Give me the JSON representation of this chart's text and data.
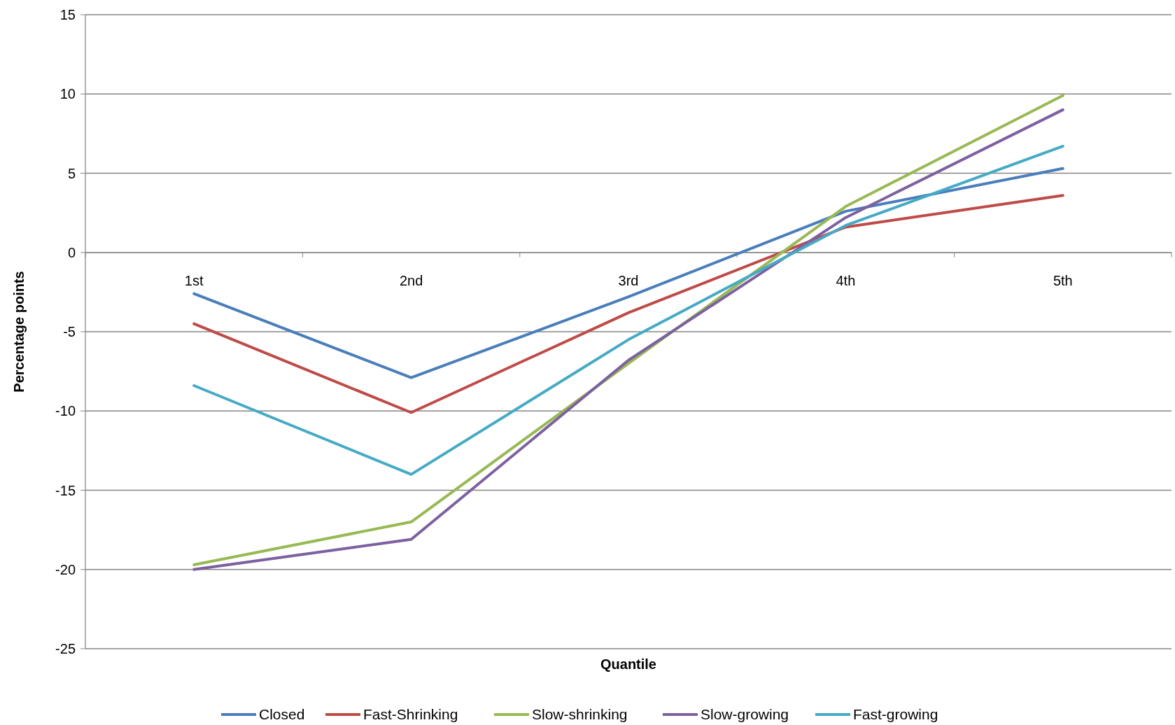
{
  "chart_data": {
    "type": "line",
    "xlabel": "Quantile",
    "ylabel": "Percentage points",
    "categories": [
      "1st",
      "2nd",
      "3rd",
      "4th",
      "5th"
    ],
    "series": [
      {
        "name": "Closed",
        "color": "#4a7ebb",
        "values": [
          -2.6,
          -7.9,
          -2.8,
          2.6,
          5.3
        ]
      },
      {
        "name": "Fast-Shrinking",
        "color": "#be4b48",
        "values": [
          -4.5,
          -10.1,
          -3.8,
          1.6,
          3.6
        ]
      },
      {
        "name": "Slow-shrinking",
        "color": "#98b954",
        "values": [
          -19.7,
          -17.0,
          -7.0,
          2.9,
          9.9
        ]
      },
      {
        "name": "Slow-growing",
        "color": "#7d60a0",
        "values": [
          -20.0,
          -18.1,
          -6.8,
          2.2,
          9.0
        ]
      },
      {
        "name": "Fast-growing",
        "color": "#46aac5",
        "values": [
          -8.4,
          -14.0,
          -5.5,
          1.7,
          6.7
        ]
      }
    ],
    "ylim": [
      -25,
      15
    ],
    "yticks": [
      -25,
      -20,
      -15,
      -10,
      -5,
      0,
      5,
      10,
      15
    ],
    "grid": "y",
    "legend": "bottom",
    "marker": "none",
    "line_style": "solid"
  }
}
